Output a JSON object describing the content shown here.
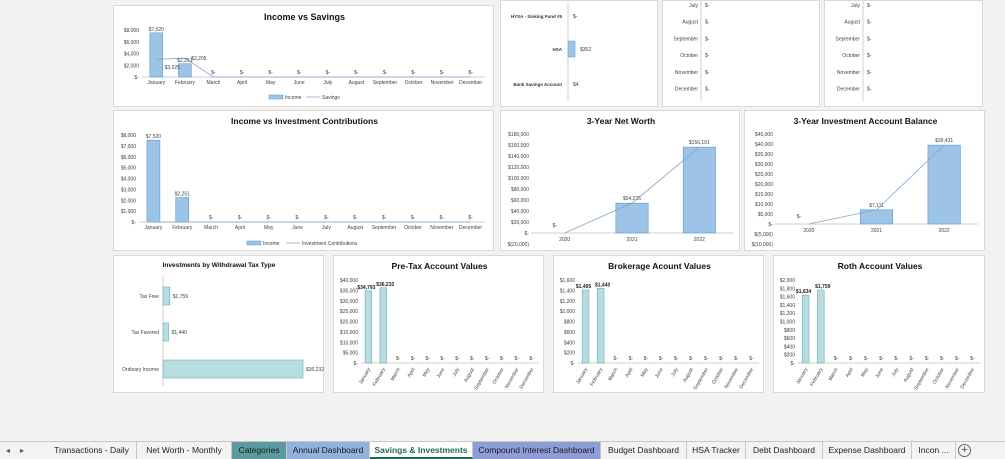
{
  "months": [
    "January",
    "February",
    "March",
    "April",
    "May",
    "June",
    "July",
    "August",
    "September",
    "October",
    "November",
    "December"
  ],
  "months_top_partial": [
    "July",
    "August",
    "September",
    "October",
    "November",
    "December"
  ],
  "dash": "$-",
  "charts": {
    "income_vs_savings": {
      "title": "Income vs Savings",
      "ticks": [
        "$8,000",
        "$6,000",
        "$4,000",
        "$2,000",
        "$-"
      ],
      "labels": [
        "$7,520",
        "$2,251",
        "$3,205",
        "$3,025"
      ],
      "legend": [
        "Income",
        "Savings"
      ]
    },
    "top_mid": {
      "labels": [
        "HYSA - Sinking Fund #5",
        "HSA",
        "Bank Savings Account"
      ],
      "values": [
        "$-",
        "$352",
        "$4"
      ]
    },
    "top_right_a": {
      "months": [
        "July",
        "August",
        "September",
        "October",
        "November",
        "December"
      ]
    },
    "top_right_b": {
      "months": [
        "July",
        "August",
        "September",
        "October",
        "November",
        "December"
      ]
    },
    "income_vs_investment": {
      "title": "Income vs Investment Contributions",
      "ticks": [
        "$8,000",
        "$7,000",
        "$6,000",
        "$5,000",
        "$4,000",
        "$3,000",
        "$2,000",
        "$1,000",
        "$-"
      ],
      "labels": [
        "$7,520",
        "$2,251"
      ],
      "legend": [
        "Income",
        "Investment Contributions"
      ]
    },
    "net_worth": {
      "title": "3-Year Net Worth",
      "ticks": [
        "$180,000",
        "$160,000",
        "$140,000",
        "$120,000",
        "$100,000",
        "$80,000",
        "$60,000",
        "$40,000",
        "$20,000",
        "$-",
        "$(20,000)"
      ],
      "categories": [
        "2020",
        "2021",
        "2022"
      ],
      "labels": [
        "$-",
        "$54,225",
        "$156,101"
      ]
    },
    "investment_balance": {
      "title": "3-Year Investment Account Balance",
      "ticks": [
        "$45,000",
        "$40,000",
        "$35,000",
        "$30,000",
        "$25,000",
        "$20,000",
        "$15,000",
        "$10,000",
        "$5,000",
        "$-",
        "$(5,000)",
        "$(10,000)"
      ],
      "categories": [
        "2020",
        "2021",
        "2022"
      ],
      "labels": [
        "$-",
        "$7,111",
        "$39,431"
      ]
    },
    "withdrawal_tax": {
      "title": "Investments by Withdrawal Tax Type",
      "categories": [
        "Tax Free",
        "Tax Favored",
        "Ordinary Income"
      ],
      "labels": [
        "$1,759",
        "$1,440",
        "$36,232"
      ]
    },
    "pretax": {
      "title": "Pre-Tax Account Values",
      "ticks": [
        "$40,000",
        "$35,000",
        "$30,000",
        "$25,000",
        "$20,000",
        "$15,000",
        "$10,000",
        "$5,000",
        "$-"
      ],
      "labels": [
        "$34,793",
        "$36,232"
      ]
    },
    "brokerage": {
      "title": "Brokerage Acount Values",
      "ticks": [
        "$1,600",
        "$1,400",
        "$1,200",
        "$1,000",
        "$800",
        "$600",
        "$400",
        "$200",
        "$-"
      ],
      "labels": [
        "$1,405",
        "$1,440"
      ]
    },
    "roth": {
      "title": "Roth Account Values",
      "ticks": [
        "$2,000",
        "$1,800",
        "$1,600",
        "$1,400",
        "$1,200",
        "$1,000",
        "$800",
        "$600",
        "$400",
        "$200",
        "$-"
      ],
      "labels": [
        "$1,634",
        "$1,759"
      ]
    }
  },
  "chart_data": [
    {
      "type": "bar",
      "title": "Income vs Savings",
      "categories": [
        "January",
        "February",
        "March",
        "April",
        "May",
        "June",
        "July",
        "August",
        "September",
        "October",
        "November",
        "December"
      ],
      "series": [
        {
          "name": "Income",
          "values": [
            7520,
            2251,
            0,
            0,
            0,
            0,
            0,
            0,
            0,
            0,
            0,
            0
          ]
        },
        {
          "name": "Savings",
          "values": [
            3025,
            3205,
            0,
            0,
            0,
            0,
            0,
            0,
            0,
            0,
            0,
            0
          ]
        }
      ],
      "ylim": [
        0,
        8000
      ]
    },
    {
      "type": "bar",
      "title": "Income vs Investment Contributions",
      "categories": [
        "January",
        "February",
        "March",
        "April",
        "May",
        "June",
        "July",
        "August",
        "September",
        "October",
        "November",
        "December"
      ],
      "series": [
        {
          "name": "Income",
          "values": [
            7520,
            2251,
            0,
            0,
            0,
            0,
            0,
            0,
            0,
            0,
            0,
            0
          ]
        },
        {
          "name": "Investment Contributions",
          "values": [
            0,
            0,
            0,
            0,
            0,
            0,
            0,
            0,
            0,
            0,
            0,
            0
          ]
        }
      ],
      "ylim": [
        0,
        8000
      ]
    },
    {
      "type": "bar",
      "title": "3-Year Net Worth",
      "categories": [
        "2020",
        "2021",
        "2022"
      ],
      "values": [
        0,
        54225,
        156101
      ],
      "ylim": [
        -20000,
        180000
      ]
    },
    {
      "type": "bar",
      "title": "3-Year Investment Account Balance",
      "categories": [
        "2020",
        "2021",
        "2022"
      ],
      "values": [
        0,
        7111,
        39431
      ],
      "ylim": [
        -10000,
        45000
      ]
    },
    {
      "type": "bar",
      "title": "Investments by Withdrawal Tax Type",
      "categories": [
        "Tax Free",
        "Tax Favored",
        "Ordinary Income"
      ],
      "values": [
        1759,
        1440,
        36232
      ]
    },
    {
      "type": "bar",
      "title": "Pre-Tax Account Values",
      "categories": [
        "January",
        "February",
        "March",
        "April",
        "May",
        "June",
        "July",
        "August",
        "September",
        "October",
        "November",
        "December"
      ],
      "values": [
        34793,
        36232,
        0,
        0,
        0,
        0,
        0,
        0,
        0,
        0,
        0,
        0
      ],
      "ylim": [
        0,
        40000
      ]
    },
    {
      "type": "bar",
      "title": "Brokerage Acount Values",
      "categories": [
        "January",
        "February",
        "March",
        "April",
        "May",
        "June",
        "July",
        "August",
        "September",
        "October",
        "November",
        "December"
      ],
      "values": [
        1405,
        1440,
        0,
        0,
        0,
        0,
        0,
        0,
        0,
        0,
        0,
        0
      ],
      "ylim": [
        0,
        1600
      ]
    },
    {
      "type": "bar",
      "title": "Roth Account Values",
      "categories": [
        "January",
        "February",
        "March",
        "April",
        "May",
        "June",
        "July",
        "August",
        "September",
        "October",
        "November",
        "December"
      ],
      "values": [
        1634,
        1759,
        0,
        0,
        0,
        0,
        0,
        0,
        0,
        0,
        0,
        0
      ],
      "ylim": [
        0,
        2000
      ]
    }
  ],
  "tabs": [
    {
      "label": "Transactions - Daily",
      "color": ""
    },
    {
      "label": "Net Worth - Monthly",
      "color": ""
    },
    {
      "label": "Categories",
      "color": "#5b9ba0"
    },
    {
      "label": "Annual Dashboard",
      "color": "#8fb3dd"
    },
    {
      "label": "Savings & Investments",
      "color": "",
      "active": true
    },
    {
      "label": "Compound Interest Dashboard",
      "color": "#8e9dd6"
    },
    {
      "label": "Budget Dashboard",
      "color": ""
    },
    {
      "label": "HSA Tracker",
      "color": ""
    },
    {
      "label": "Debt Dashboard",
      "color": ""
    },
    {
      "label": "Expense Dashboard",
      "color": ""
    },
    {
      "label": "Incon ...",
      "color": ""
    }
  ],
  "nav": {
    "prev": "◂",
    "next": "▸",
    "add": "+"
  }
}
